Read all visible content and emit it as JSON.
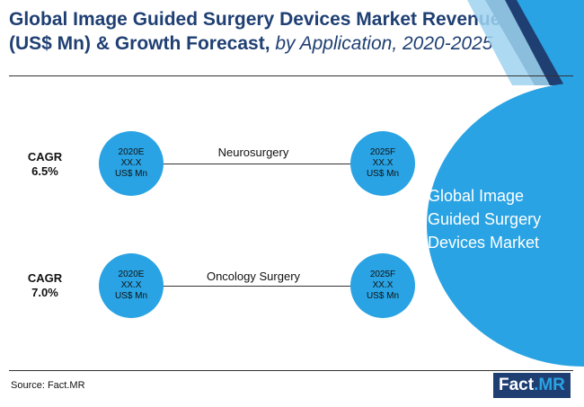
{
  "title": {
    "line1": "Global Image Guided Surgery Devices Market Revenue",
    "line2_bold": "(US$ Mn) & Growth Forecast,",
    "line2_italic": " by Application, 2020-2025"
  },
  "segments": [
    {
      "name": "Neurosurgery",
      "cagr_label": "CAGR",
      "cagr_value": "6.5%",
      "start": {
        "year": "2020E",
        "value": "XX.X",
        "unit": "US$ Mn"
      },
      "end": {
        "year": "2025F",
        "value": "XX.X",
        "unit": "US$ Mn"
      }
    },
    {
      "name": "Oncology Surgery",
      "cagr_label": "CAGR",
      "cagr_value": "7.0%",
      "start": {
        "year": "2020E",
        "value": "XX.X",
        "unit": "US$ Mn"
      },
      "end": {
        "year": "2025F",
        "value": "XX.X",
        "unit": "US$ Mn"
      }
    }
  ],
  "market": {
    "line1": "Global Image",
    "line2": "Guided Surgery",
    "line3": "Devices Market"
  },
  "source": "Source: Fact.MR",
  "logo": {
    "part1": "Fact",
    "part2": ".MR"
  },
  "colors": {
    "circle": "#29a3e3",
    "title": "#1f3f73",
    "deco_light": "#9fd4f0"
  }
}
